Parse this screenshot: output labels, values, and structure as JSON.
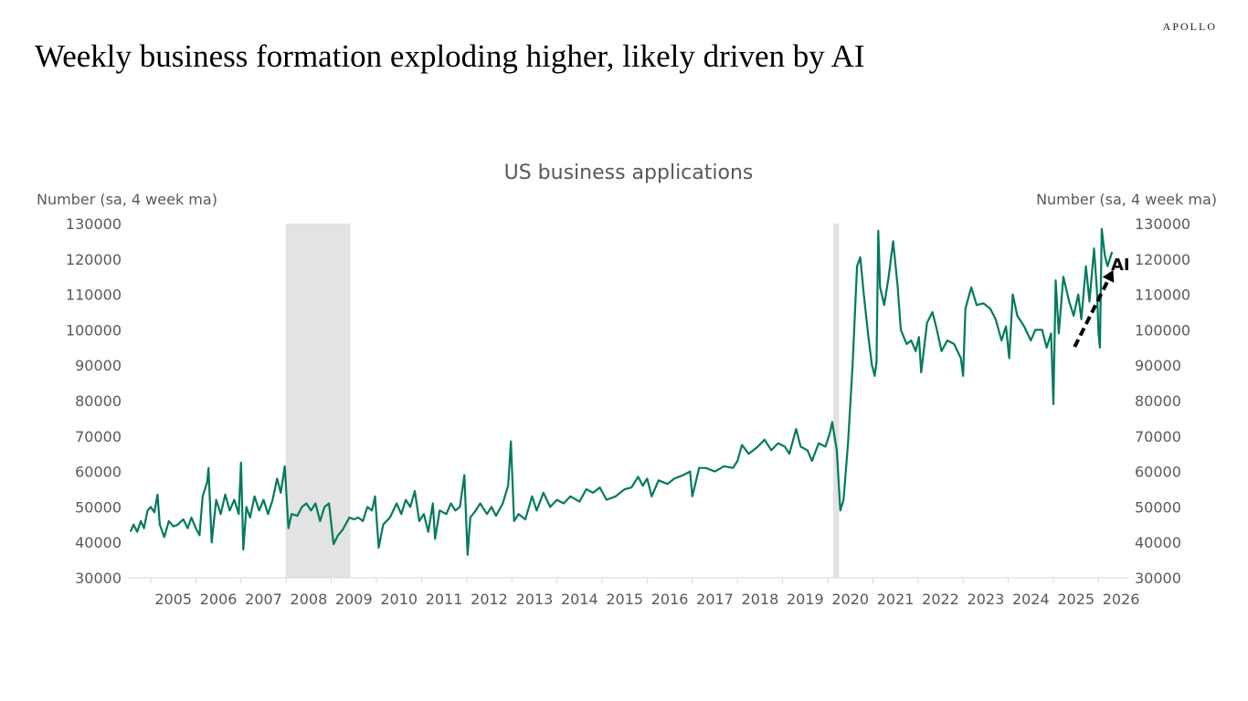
{
  "brand": "APOLLO",
  "title": "Weekly business formation exploding higher, likely driven by AI",
  "chart_data": {
    "type": "line",
    "title": "US business applications",
    "ylabel_left": "Number (sa, 4 week ma)",
    "ylabel_right": "Number (sa, 4 week ma)",
    "ylim": [
      30000,
      130000
    ],
    "yticks": [
      30000,
      40000,
      50000,
      60000,
      70000,
      80000,
      90000,
      100000,
      110000,
      120000,
      130000
    ],
    "xlim": [
      2004.55,
      2026.7
    ],
    "xtick_labels": [
      "2005",
      "2006",
      "2007",
      "2008",
      "2009",
      "2010",
      "2011",
      "2012",
      "2013",
      "2014",
      "2015",
      "2016",
      "2017",
      "2018",
      "2019",
      "2020",
      "2021",
      "2022",
      "2023",
      "2024",
      "2025",
      "2026"
    ],
    "grid": false,
    "line_color": "#007a5e",
    "recession_color": "#e2e3e2",
    "recessions": [
      [
        2007.99,
        2009.42
      ],
      [
        2020.12,
        2020.25
      ]
    ],
    "annotation": {
      "text": "AI",
      "style": "dashed black arrow"
    },
    "series": [
      {
        "points": [
          [
            2004.55,
            43000
          ],
          [
            2004.62,
            45000
          ],
          [
            2004.7,
            43000
          ],
          [
            2004.78,
            46000
          ],
          [
            2004.85,
            44000
          ],
          [
            2004.93,
            49000
          ],
          [
            2005.0,
            50000
          ],
          [
            2005.08,
            48500
          ],
          [
            2005.15,
            53500
          ],
          [
            2005.2,
            45000
          ],
          [
            2005.3,
            41500
          ],
          [
            2005.4,
            46000
          ],
          [
            2005.5,
            44500
          ],
          [
            2005.6,
            45000
          ],
          [
            2005.72,
            46500
          ],
          [
            2005.82,
            44000
          ],
          [
            2005.9,
            47000
          ],
          [
            2006.0,
            44000
          ],
          [
            2006.08,
            42000
          ],
          [
            2006.15,
            53000
          ],
          [
            2006.25,
            57000
          ],
          [
            2006.28,
            61000
          ],
          [
            2006.35,
            40000
          ],
          [
            2006.45,
            52000
          ],
          [
            2006.55,
            48000
          ],
          [
            2006.65,
            53500
          ],
          [
            2006.75,
            49000
          ],
          [
            2006.85,
            52000
          ],
          [
            2006.95,
            48000
          ],
          [
            2007.0,
            62500
          ],
          [
            2007.05,
            38000
          ],
          [
            2007.12,
            50000
          ],
          [
            2007.2,
            47000
          ],
          [
            2007.3,
            53000
          ],
          [
            2007.4,
            49000
          ],
          [
            2007.5,
            52000
          ],
          [
            2007.6,
            48000
          ],
          [
            2007.7,
            52000
          ],
          [
            2007.8,
            58000
          ],
          [
            2007.88,
            54000
          ],
          [
            2007.97,
            61500
          ],
          [
            2008.05,
            44000
          ],
          [
            2008.12,
            48000
          ],
          [
            2008.25,
            47500
          ],
          [
            2008.35,
            50000
          ],
          [
            2008.45,
            51000
          ],
          [
            2008.55,
            49000
          ],
          [
            2008.65,
            51000
          ],
          [
            2008.75,
            46000
          ],
          [
            2008.85,
            50000
          ],
          [
            2008.95,
            51000
          ],
          [
            2009.05,
            39500
          ],
          [
            2009.15,
            42000
          ],
          [
            2009.25,
            43500
          ],
          [
            2009.4,
            47000
          ],
          [
            2009.5,
            46500
          ],
          [
            2009.6,
            47000
          ],
          [
            2009.7,
            46000
          ],
          [
            2009.8,
            50000
          ],
          [
            2009.9,
            49000
          ],
          [
            2009.97,
            53000
          ],
          [
            2010.05,
            38500
          ],
          [
            2010.15,
            45000
          ],
          [
            2010.3,
            47000
          ],
          [
            2010.45,
            51000
          ],
          [
            2010.55,
            48000
          ],
          [
            2010.65,
            52000
          ],
          [
            2010.75,
            50000
          ],
          [
            2010.85,
            54500
          ],
          [
            2010.95,
            46000
          ],
          [
            2011.05,
            48000
          ],
          [
            2011.15,
            43000
          ],
          [
            2011.25,
            51000
          ],
          [
            2011.3,
            41000
          ],
          [
            2011.4,
            49000
          ],
          [
            2011.55,
            48000
          ],
          [
            2011.65,
            51000
          ],
          [
            2011.75,
            49000
          ],
          [
            2011.85,
            50000
          ],
          [
            2011.95,
            59000
          ],
          [
            2012.02,
            36500
          ],
          [
            2012.08,
            47000
          ],
          [
            2012.2,
            49000
          ],
          [
            2012.3,
            51000
          ],
          [
            2012.45,
            48000
          ],
          [
            2012.55,
            50000
          ],
          [
            2012.65,
            47500
          ],
          [
            2012.8,
            51000
          ],
          [
            2012.92,
            56000
          ],
          [
            2012.98,
            68500
          ],
          [
            2013.05,
            46000
          ],
          [
            2013.15,
            48000
          ],
          [
            2013.3,
            46500
          ],
          [
            2013.45,
            53000
          ],
          [
            2013.55,
            49000
          ],
          [
            2013.7,
            54000
          ],
          [
            2013.85,
            50000
          ],
          [
            2014.0,
            52000
          ],
          [
            2014.15,
            51000
          ],
          [
            2014.3,
            53000
          ],
          [
            2014.5,
            51500
          ],
          [
            2014.65,
            55000
          ],
          [
            2014.8,
            54000
          ],
          [
            2014.95,
            55500
          ],
          [
            2015.1,
            52000
          ],
          [
            2015.3,
            53000
          ],
          [
            2015.5,
            55000
          ],
          [
            2015.65,
            55500
          ],
          [
            2015.8,
            58500
          ],
          [
            2015.9,
            56000
          ],
          [
            2016.0,
            58000
          ],
          [
            2016.1,
            53000
          ],
          [
            2016.25,
            57500
          ],
          [
            2016.45,
            56500
          ],
          [
            2016.6,
            58000
          ],
          [
            2016.8,
            59000
          ],
          [
            2016.95,
            60000
          ],
          [
            2017.0,
            53000
          ],
          [
            2017.15,
            61000
          ],
          [
            2017.3,
            61000
          ],
          [
            2017.5,
            60000
          ],
          [
            2017.7,
            61500
          ],
          [
            2017.9,
            61000
          ],
          [
            2018.0,
            63000
          ],
          [
            2018.1,
            67500
          ],
          [
            2018.25,
            65000
          ],
          [
            2018.45,
            67000
          ],
          [
            2018.6,
            69000
          ],
          [
            2018.75,
            66000
          ],
          [
            2018.9,
            68000
          ],
          [
            2019.05,
            67000
          ],
          [
            2019.15,
            65000
          ],
          [
            2019.3,
            72000
          ],
          [
            2019.4,
            67000
          ],
          [
            2019.55,
            66000
          ],
          [
            2019.65,
            63000
          ],
          [
            2019.8,
            68000
          ],
          [
            2019.95,
            67000
          ],
          [
            2020.05,
            71000
          ],
          [
            2020.1,
            74000
          ],
          [
            2020.15,
            70000
          ],
          [
            2020.2,
            66000
          ],
          [
            2020.28,
            49000
          ],
          [
            2020.35,
            52000
          ],
          [
            2020.45,
            68000
          ],
          [
            2020.55,
            90000
          ],
          [
            2020.65,
            118000
          ],
          [
            2020.72,
            120500
          ],
          [
            2020.8,
            110000
          ],
          [
            2020.9,
            98000
          ],
          [
            2020.98,
            90000
          ],
          [
            2021.04,
            87000
          ],
          [
            2021.08,
            91000
          ],
          [
            2021.12,
            128000
          ],
          [
            2021.16,
            112000
          ],
          [
            2021.25,
            107000
          ],
          [
            2021.35,
            115000
          ],
          [
            2021.45,
            125000
          ],
          [
            2021.55,
            112000
          ],
          [
            2021.62,
            100000
          ],
          [
            2021.75,
            96000
          ],
          [
            2021.85,
            97000
          ],
          [
            2021.95,
            94000
          ],
          [
            2022.02,
            98000
          ],
          [
            2022.07,
            88000
          ],
          [
            2022.2,
            102000
          ],
          [
            2022.32,
            105000
          ],
          [
            2022.42,
            100000
          ],
          [
            2022.52,
            94000
          ],
          [
            2022.65,
            97000
          ],
          [
            2022.8,
            96000
          ],
          [
            2022.95,
            92000
          ],
          [
            2023.0,
            87000
          ],
          [
            2023.05,
            106000
          ],
          [
            2023.18,
            112000
          ],
          [
            2023.3,
            107000
          ],
          [
            2023.45,
            107500
          ],
          [
            2023.6,
            106000
          ],
          [
            2023.72,
            103000
          ],
          [
            2023.85,
            97000
          ],
          [
            2023.95,
            101000
          ],
          [
            2024.02,
            92000
          ],
          [
            2024.1,
            110000
          ],
          [
            2024.2,
            104000
          ],
          [
            2024.35,
            101000
          ],
          [
            2024.5,
            97000
          ],
          [
            2024.6,
            100000
          ],
          [
            2024.75,
            100000
          ],
          [
            2024.85,
            95000
          ],
          [
            2024.95,
            99000
          ],
          [
            2025.0,
            79000
          ],
          [
            2025.05,
            114000
          ],
          [
            2025.12,
            99000
          ],
          [
            2025.22,
            115000
          ],
          [
            2025.35,
            108000
          ],
          [
            2025.45,
            104000
          ],
          [
            2025.55,
            110000
          ],
          [
            2025.62,
            103000
          ],
          [
            2025.72,
            118000
          ],
          [
            2025.8,
            108000
          ],
          [
            2025.9,
            123000
          ],
          [
            2025.97,
            110000
          ],
          [
            2026.0,
            99000
          ],
          [
            2026.03,
            95000
          ],
          [
            2026.07,
            128500
          ],
          [
            2026.14,
            121000
          ],
          [
            2026.2,
            118000
          ],
          [
            2026.3,
            122000
          ]
        ]
      }
    ]
  }
}
